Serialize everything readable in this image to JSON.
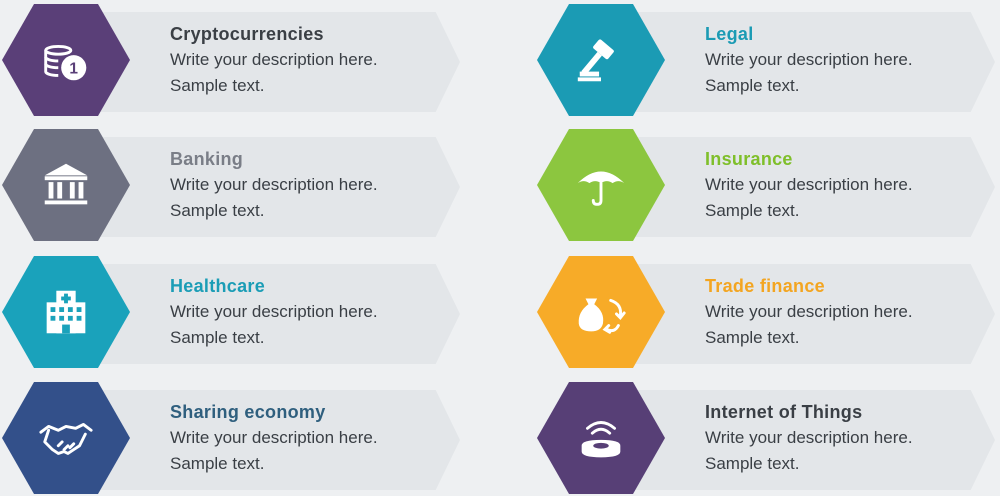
{
  "items": [
    {
      "title": "Cryptocurrencies",
      "line1": "Write your description here.",
      "line2": "Sample text.",
      "color": "#5a3f78",
      "title_color": "#3a3f45",
      "icon": "coins-icon"
    },
    {
      "title": "Banking",
      "line1": "Write your description here.",
      "line2": "Sample text.",
      "color": "#6d7081",
      "title_color": "#7a7e87",
      "icon": "bank-icon"
    },
    {
      "title": "Healthcare",
      "line1": "Write your description here.",
      "line2": "Sample text.",
      "color": "#1aa2bb",
      "title_color": "#1b9db6",
      "icon": "hospital-icon"
    },
    {
      "title": "Sharing economy",
      "line1": "Write your description here.",
      "line2": "Sample text.",
      "color": "#33508a",
      "title_color": "#2f5f7e",
      "icon": "handshake-icon"
    },
    {
      "title": "Legal",
      "line1": "Write your description here.",
      "line2": "Sample text.",
      "color": "#1b9bb4",
      "title_color": "#1b9bb4",
      "icon": "gavel-icon"
    },
    {
      "title": "Insurance",
      "line1": "Write your description here.",
      "line2": "Sample text.",
      "color": "#8cc63f",
      "title_color": "#7fbf2a",
      "icon": "umbrella-icon"
    },
    {
      "title": "Trade finance",
      "line1": "Write your description here.",
      "line2": "Sample text.",
      "color": "#f7ab28",
      "title_color": "#f3a521",
      "icon": "money-bag-exchange-icon"
    },
    {
      "title": "Internet of Things",
      "line1": "Write your description here.",
      "line2": "Sample text.",
      "color": "#573f76",
      "title_color": "#3a3f45",
      "icon": "wireless-device-icon"
    }
  ]
}
